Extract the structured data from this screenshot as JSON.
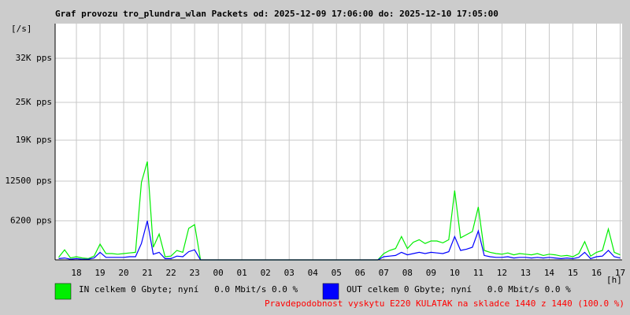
{
  "chart_data": {
    "type": "line",
    "title": "Graf provozu tro_plundra_wlan Packets od: 2025-12-09 17:06:00 do: 2025-12-10 17:05:00",
    "y_unit": "[/s]",
    "x_unit": "[h]",
    "note": "Pravdepodobnost vyskytu E220 KULATAK na skladce 1440 z 1440 (100.0 %)",
    "xlim": [
      17.1,
      41.083
    ],
    "ylim": [
      0,
      37500
    ],
    "grid": true,
    "xticks": [
      {
        "value": 18,
        "label": "18"
      },
      {
        "value": 19,
        "label": "19"
      },
      {
        "value": 20,
        "label": "20"
      },
      {
        "value": 21,
        "label": "21"
      },
      {
        "value": 22,
        "label": "22"
      },
      {
        "value": 23,
        "label": "23"
      },
      {
        "value": 24,
        "label": "00"
      },
      {
        "value": 25,
        "label": "01"
      },
      {
        "value": 26,
        "label": "02"
      },
      {
        "value": 27,
        "label": "03"
      },
      {
        "value": 28,
        "label": "04"
      },
      {
        "value": 29,
        "label": "05"
      },
      {
        "value": 30,
        "label": "06"
      },
      {
        "value": 31,
        "label": "07"
      },
      {
        "value": 32,
        "label": "08"
      },
      {
        "value": 33,
        "label": "09"
      },
      {
        "value": 34,
        "label": "10"
      },
      {
        "value": 35,
        "label": "11"
      },
      {
        "value": 36,
        "label": "12"
      },
      {
        "value": 37,
        "label": "13"
      },
      {
        "value": 38,
        "label": "14"
      },
      {
        "value": 39,
        "label": "15"
      },
      {
        "value": 40,
        "label": "16"
      },
      {
        "value": 41,
        "label": "17"
      }
    ],
    "yticks": [
      {
        "value": 6200,
        "label": "6200 pps"
      },
      {
        "value": 12500,
        "label": "12500 pps"
      },
      {
        "value": 19000,
        "label": "19K pps"
      },
      {
        "value": 25000,
        "label": "25K pps"
      },
      {
        "value": 32000,
        "label": "32K pps"
      }
    ],
    "x": [
      17.25,
      17.5,
      17.75,
      18,
      18.25,
      18.5,
      18.75,
      19,
      19.25,
      19.5,
      19.75,
      20,
      20.25,
      20.5,
      20.75,
      21,
      21.25,
      21.5,
      21.75,
      22,
      22.25,
      22.5,
      22.75,
      23,
      23.25,
      23.5,
      23.75,
      24,
      24.25,
      24.5,
      24.75,
      25,
      25.25,
      25.5,
      25.75,
      26,
      26.25,
      26.5,
      26.75,
      27,
      27.25,
      27.5,
      27.75,
      28,
      28.25,
      28.5,
      28.75,
      29,
      29.25,
      29.5,
      29.75,
      30,
      30.25,
      30.5,
      30.75,
      31,
      31.25,
      31.5,
      31.75,
      32,
      32.25,
      32.5,
      32.75,
      33,
      33.25,
      33.5,
      33.75,
      34,
      34.25,
      34.5,
      34.75,
      35,
      35.25,
      35.5,
      35.75,
      36,
      36.25,
      36.5,
      36.75,
      37,
      37.25,
      37.5,
      37.75,
      38,
      38.25,
      38.5,
      38.75,
      39,
      39.25,
      39.5,
      39.75,
      40,
      40.25,
      40.5,
      40.75,
      41
    ],
    "series": [
      {
        "name": "IN celkem 0 Gbyte; nyní   0.0 Mbit/s 0.0 %",
        "color": "#00ee00",
        "values": [
          400,
          1600,
          300,
          500,
          300,
          200,
          600,
          2500,
          1000,
          1000,
          900,
          1000,
          1100,
          1200,
          12300,
          15600,
          2000,
          4100,
          500,
          600,
          1500,
          1200,
          5000,
          5600,
          0,
          0,
          0,
          0,
          0,
          0,
          0,
          0,
          0,
          0,
          0,
          0,
          0,
          0,
          0,
          0,
          0,
          0,
          0,
          0,
          0,
          0,
          0,
          0,
          0,
          0,
          0,
          0,
          0,
          0,
          0,
          1000,
          1500,
          1800,
          3700,
          1800,
          2800,
          3200,
          2600,
          3000,
          3000,
          2700,
          3200,
          11000,
          3500,
          4000,
          4500,
          8400,
          1500,
          1200,
          1000,
          900,
          1100,
          800,
          1000,
          900,
          800,
          1000,
          700,
          900,
          800,
          600,
          700,
          500,
          1000,
          2900,
          600,
          1200,
          1500,
          4900,
          1200,
          800
        ]
      },
      {
        "name": "OUT celkem 0 Gbyte; nyní   0.0 Mbit/s 0.0 %",
        "color": "#0000ff",
        "values": [
          200,
          300,
          100,
          200,
          100,
          100,
          300,
          1200,
          400,
          400,
          400,
          400,
          500,
          500,
          2600,
          6200,
          900,
          1200,
          200,
          200,
          600,
          500,
          1300,
          1600,
          0,
          0,
          0,
          0,
          0,
          0,
          0,
          0,
          0,
          0,
          0,
          0,
          0,
          0,
          0,
          0,
          0,
          0,
          0,
          0,
          0,
          0,
          0,
          0,
          0,
          0,
          0,
          0,
          0,
          0,
          0,
          500,
          600,
          700,
          1200,
          800,
          1000,
          1200,
          1000,
          1200,
          1100,
          1000,
          1300,
          3700,
          1500,
          1700,
          2000,
          4600,
          700,
          500,
          400,
          400,
          500,
          300,
          400,
          400,
          300,
          400,
          300,
          400,
          300,
          200,
          300,
          200,
          400,
          1200,
          200,
          500,
          600,
          1500,
          500,
          300
        ]
      }
    ]
  }
}
